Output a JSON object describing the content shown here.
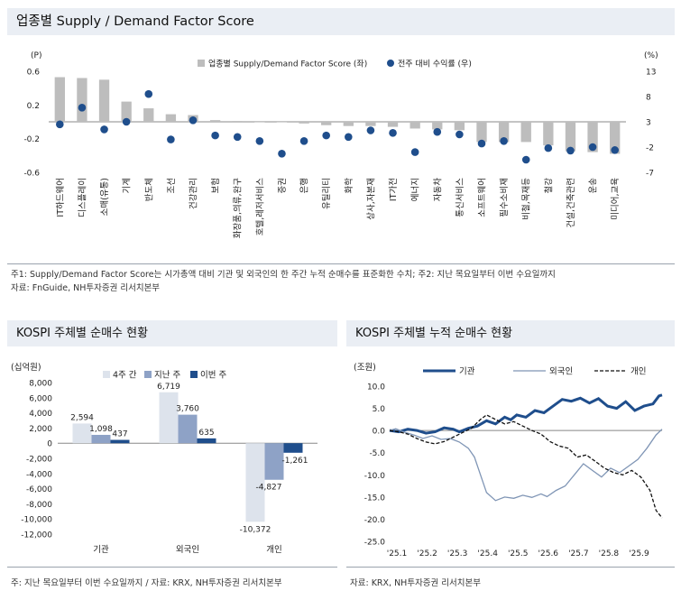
{
  "panel1": {
    "title": "업종별 Supply / Demand Factor Score",
    "note1": "주1: Supply/Demand Factor Score는 시가총액 대비 기관 및 외국인의 한 주간 누적 순매수를 표준화한 수치; 주2: 지난 목요일부터 이번 수요일까지",
    "note2": "자료: FnGuide, NH투자증권 리서치본부"
  },
  "panel2": {
    "title": "KOSPI 주체별 순매수 현황",
    "note": "주: 지난 목요일부터 이번 수요일까지 / 자료: KRX, NH투자증권 리서치본부"
  },
  "panel3": {
    "title": "KOSPI 주체별 누적 순매수 현황",
    "note": "자료: KRX, NH투자증권 리서치본부"
  },
  "colors": {
    "bar_gray": "#bdbdbd",
    "dot_navy": "#1f4e8c",
    "bar_4w": "#dde3ec",
    "bar_last": "#8ea2c6",
    "bar_this": "#1f4e8c",
    "line_inst": "#1f4e8c",
    "line_foreign": "#7f95b5",
    "line_indiv": "#111111"
  },
  "chart_data": [
    {
      "type": "bar+scatter",
      "title": "업종별 Supply / Demand Factor Score",
      "left_unit": "(P)",
      "right_unit": "(%)",
      "ylim_left": [
        -0.6,
        0.6
      ],
      "yticks_left": [
        "0.6",
        "0.2",
        "-0.2",
        "-0.6"
      ],
      "ylim_right": [
        -7,
        13
      ],
      "yticks_right": [
        "13",
        "8",
        "3",
        "-2",
        "-7"
      ],
      "legend_bar": "업종별 Supply/Demand Factor Score (좌)",
      "legend_dot": "전주 대비 수익률 (우)",
      "categories": [
        "IT하드웨어",
        "디스플레이",
        "소매(유통)",
        "기계",
        "반도체",
        "조선",
        "건강관리",
        "보험",
        "화장품,의류,완구",
        "호텔,레저서비스",
        "증권",
        "은행",
        "유틸리티",
        "화학",
        "상사,자본재",
        "IT가전",
        "에너지",
        "자동차",
        "통신서비스",
        "소프트웨어",
        "필수소비재",
        "비철,목재등",
        "철강",
        "건설,건축관련",
        "운송",
        "미디어,교육"
      ],
      "scores": [
        0.53,
        0.52,
        0.5,
        0.24,
        0.16,
        0.09,
        0.08,
        0.02,
        0.01,
        0.0,
        0.0,
        -0.02,
        -0.04,
        -0.05,
        -0.05,
        -0.06,
        -0.08,
        -0.09,
        -0.1,
        -0.24,
        -0.24,
        -0.24,
        -0.28,
        -0.35,
        -0.36,
        -0.38
      ],
      "returns": [
        2.5,
        5.8,
        1.5,
        3.0,
        8.5,
        -0.5,
        3.3,
        0.3,
        0.0,
        -0.8,
        -3.3,
        -0.8,
        0.3,
        0.0,
        1.3,
        0.8,
        -3.0,
        1.0,
        0.5,
        -1.3,
        -0.8,
        -4.5,
        -2.2,
        -2.7,
        -2.0,
        -2.6
      ]
    },
    {
      "type": "bar",
      "title": "KOSPI 주체별 순매수 현황",
      "unit": "(십억원)",
      "ylim": [
        -12000,
        8000
      ],
      "yticks": [
        "8,000",
        "6,000",
        "4,000",
        "2,000",
        "0",
        "-2,000",
        "-4,000",
        "-6,000",
        "-8,000",
        "-10,000",
        "-12,000"
      ],
      "categories": [
        "기관",
        "외국인",
        "개인"
      ],
      "series": [
        {
          "name": "4주 간",
          "values": [
            2594,
            6719,
            -10372
          ],
          "labels": [
            "2,594",
            "6,719",
            "-10,372"
          ]
        },
        {
          "name": "지난 주",
          "values": [
            1098,
            3760,
            -4827
          ],
          "labels": [
            "1,098",
            "3,760",
            "-4,827"
          ]
        },
        {
          "name": "이번 주",
          "values": [
            437,
            635,
            -1261
          ],
          "labels": [
            "437",
            "635",
            "-1,261"
          ]
        }
      ]
    },
    {
      "type": "line",
      "title": "KOSPI 주체별 누적 순매수 현황",
      "unit": "(조원)",
      "ylim": [
        -25,
        10
      ],
      "yticks": [
        "10.0",
        "5.0",
        "0.0",
        "-5.0",
        "-10.0",
        "-15.0",
        "-20.0",
        "-25.0"
      ],
      "x_ticks": [
        "'25.1",
        "'25.2",
        "'25.3",
        "'25.4",
        "'25.5",
        "'25.6",
        "'25.7",
        "'25.8",
        "'25.9"
      ],
      "x_range": [
        0,
        9
      ],
      "series": [
        {
          "name": "기관",
          "points": [
            [
              0,
              0
            ],
            [
              0.3,
              -0.3
            ],
            [
              0.6,
              0.3
            ],
            [
              0.9,
              0.0
            ],
            [
              1.2,
              -0.6
            ],
            [
              1.5,
              -0.3
            ],
            [
              1.8,
              0.6
            ],
            [
              2.1,
              0.3
            ],
            [
              2.3,
              -0.3
            ],
            [
              2.6,
              0.5
            ],
            [
              2.9,
              1.0
            ],
            [
              3.2,
              2.2
            ],
            [
              3.5,
              1.5
            ],
            [
              3.8,
              3.0
            ],
            [
              4.0,
              2.4
            ],
            [
              4.2,
              3.5
            ],
            [
              4.5,
              3.0
            ],
            [
              4.8,
              4.5
            ],
            [
              5.1,
              4.0
            ],
            [
              5.4,
              5.5
            ],
            [
              5.7,
              7.0
            ],
            [
              6.0,
              6.6
            ],
            [
              6.3,
              7.3
            ],
            [
              6.6,
              6.2
            ],
            [
              6.9,
              7.2
            ],
            [
              7.2,
              5.5
            ],
            [
              7.5,
              5.0
            ],
            [
              7.8,
              6.5
            ],
            [
              8.1,
              4.5
            ],
            [
              8.4,
              5.5
            ],
            [
              8.7,
              6.0
            ],
            [
              8.9,
              7.8
            ],
            [
              9.0,
              8.0
            ]
          ]
        },
        {
          "name": "외국인",
          "points": [
            [
              0,
              0
            ],
            [
              0.2,
              0.4
            ],
            [
              0.5,
              -0.4
            ],
            [
              0.8,
              -1.0
            ],
            [
              1.1,
              -1.8
            ],
            [
              1.4,
              -1.2
            ],
            [
              1.7,
              -2.0
            ],
            [
              2.0,
              -1.8
            ],
            [
              2.3,
              -2.6
            ],
            [
              2.6,
              -4.0
            ],
            [
              2.8,
              -6.0
            ],
            [
              3.0,
              -10.0
            ],
            [
              3.2,
              -14.0
            ],
            [
              3.5,
              -15.8
            ],
            [
              3.8,
              -15.0
            ],
            [
              4.1,
              -15.3
            ],
            [
              4.4,
              -14.6
            ],
            [
              4.7,
              -15.1
            ],
            [
              5.0,
              -14.3
            ],
            [
              5.2,
              -14.9
            ],
            [
              5.5,
              -13.5
            ],
            [
              5.8,
              -12.5
            ],
            [
              6.1,
              -10.0
            ],
            [
              6.4,
              -7.5
            ],
            [
              6.7,
              -9.0
            ],
            [
              7.0,
              -10.5
            ],
            [
              7.3,
              -8.5
            ],
            [
              7.6,
              -9.5
            ],
            [
              7.9,
              -8.0
            ],
            [
              8.2,
              -6.5
            ],
            [
              8.5,
              -4.0
            ],
            [
              8.8,
              -1.0
            ],
            [
              9.0,
              0.3
            ]
          ]
        },
        {
          "name": "개인",
          "points": [
            [
              0,
              0
            ],
            [
              0.3,
              -0.3
            ],
            [
              0.6,
              -0.8
            ],
            [
              0.9,
              -1.8
            ],
            [
              1.2,
              -2.6
            ],
            [
              1.5,
              -3.0
            ],
            [
              1.8,
              -2.5
            ],
            [
              2.1,
              -1.5
            ],
            [
              2.4,
              -0.5
            ],
            [
              2.7,
              0.5
            ],
            [
              3.0,
              2.5
            ],
            [
              3.2,
              3.5
            ],
            [
              3.5,
              2.5
            ],
            [
              3.8,
              1.5
            ],
            [
              4.1,
              2.0
            ],
            [
              4.4,
              1.0
            ],
            [
              4.7,
              0.0
            ],
            [
              5.0,
              -0.8
            ],
            [
              5.3,
              -2.5
            ],
            [
              5.6,
              -3.5
            ],
            [
              5.9,
              -4.0
            ],
            [
              6.2,
              -6.0
            ],
            [
              6.5,
              -5.5
            ],
            [
              6.8,
              -7.0
            ],
            [
              7.1,
              -8.5
            ],
            [
              7.4,
              -9.5
            ],
            [
              7.7,
              -10.0
            ],
            [
              8.0,
              -9.0
            ],
            [
              8.3,
              -10.5
            ],
            [
              8.6,
              -13.5
            ],
            [
              8.8,
              -18.0
            ],
            [
              9.0,
              -19.7
            ]
          ]
        }
      ]
    }
  ]
}
